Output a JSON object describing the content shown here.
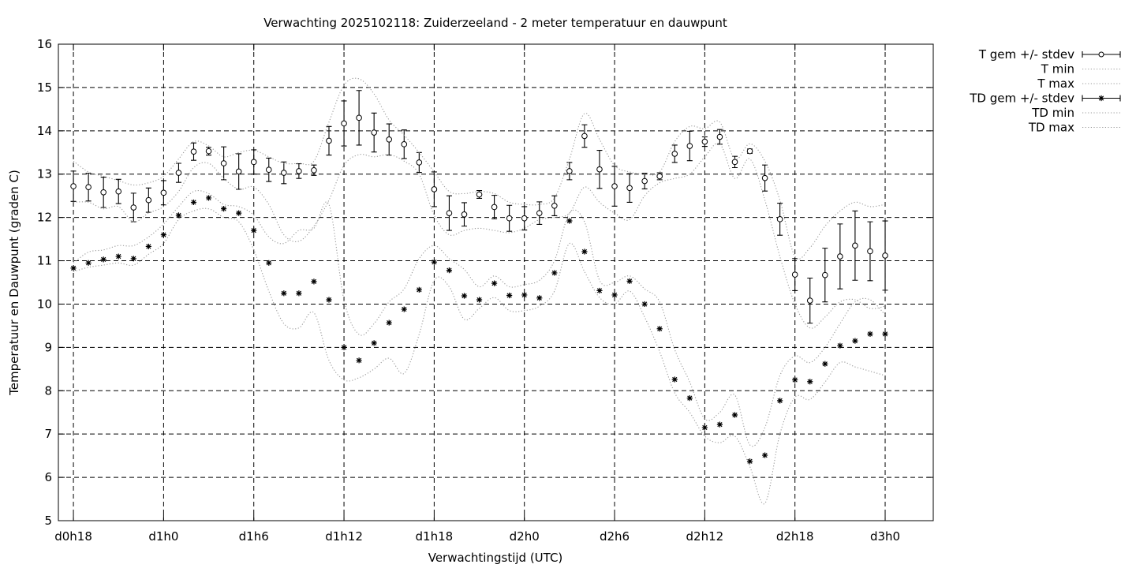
{
  "chart_data": {
    "type": "line",
    "title": "Verwachting 2025102118: Zuiderzeeland - 2 meter temperatuur en dauwpunt",
    "xlabel": "Verwachtingstijd (UTC)",
    "ylabel": "Temperatuur en Dauwpunt (graden C)",
    "ylim": [
      5,
      16
    ],
    "yticks": [
      5,
      6,
      7,
      8,
      9,
      10,
      11,
      12,
      13,
      14,
      15,
      16
    ],
    "xlim": [
      -1,
      57.2
    ],
    "xticks": [
      {
        "x": 0,
        "label": "d0h18"
      },
      {
        "x": 6,
        "label": "d1h0"
      },
      {
        "x": 12,
        "label": "d1h6"
      },
      {
        "x": 18,
        "label": "d1h12"
      },
      {
        "x": 24,
        "label": "d1h18"
      },
      {
        "x": 30,
        "label": "d2h0"
      },
      {
        "x": 36,
        "label": "d2h6"
      },
      {
        "x": 42,
        "label": "d2h12"
      },
      {
        "x": 48,
        "label": "d2h18"
      },
      {
        "x": 54,
        "label": "d3h0"
      }
    ],
    "grid": true,
    "legend_position": "outside-top-right",
    "x": [
      0,
      1,
      2,
      3,
      4,
      5,
      6,
      7,
      8,
      9,
      10,
      11,
      12,
      13,
      14,
      15,
      16,
      17,
      18,
      19,
      20,
      21,
      22,
      23,
      24,
      25,
      26,
      27,
      28,
      29,
      30,
      31,
      32,
      33,
      34,
      35,
      36,
      37,
      38,
      39,
      40,
      41,
      42,
      43,
      44,
      45,
      46,
      47,
      48,
      49,
      50,
      51,
      52,
      53,
      54
    ],
    "series": [
      {
        "name": "T gem +/- stdev",
        "marker": "circle",
        "errorbars": true,
        "values": [
          12.72,
          12.7,
          12.58,
          12.6,
          12.23,
          12.4,
          12.57,
          13.03,
          13.52,
          13.53,
          13.25,
          13.06,
          13.28,
          13.1,
          13.03,
          13.07,
          13.09,
          13.77,
          14.17,
          14.3,
          13.96,
          13.8,
          13.69,
          13.27,
          12.65,
          12.1,
          12.07,
          12.53,
          12.24,
          11.98,
          11.98,
          12.1,
          12.27,
          13.07,
          13.88,
          13.11,
          12.72,
          12.68,
          12.84,
          12.95,
          13.47,
          13.65,
          13.75,
          13.86,
          13.28,
          13.53,
          12.91,
          11.96,
          10.68,
          10.08,
          10.67,
          11.1,
          11.35,
          11.22,
          11.12
        ],
        "stdev": [
          0.35,
          0.32,
          0.35,
          0.28,
          0.33,
          0.28,
          0.28,
          0.22,
          0.2,
          0.09,
          0.38,
          0.41,
          0.28,
          0.27,
          0.25,
          0.17,
          0.12,
          0.33,
          0.52,
          0.63,
          0.45,
          0.36,
          0.33,
          0.23,
          0.4,
          0.4,
          0.27,
          0.09,
          0.27,
          0.3,
          0.27,
          0.26,
          0.23,
          0.2,
          0.26,
          0.44,
          0.46,
          0.33,
          0.18,
          0.08,
          0.2,
          0.34,
          0.11,
          0.17,
          0.13,
          0.05,
          0.3,
          0.37,
          0.37,
          0.52,
          0.62,
          0.75,
          0.8,
          0.68,
          0.8
        ]
      },
      {
        "name": "T min",
        "line": "dotted",
        "values": [
          12.35,
          12.35,
          12.2,
          12.25,
          11.9,
          12.1,
          12.25,
          12.6,
          13.15,
          13.25,
          12.9,
          12.65,
          12.7,
          12.3,
          11.6,
          11.45,
          11.8,
          12.4,
          13.2,
          13.45,
          13.4,
          13.45,
          13.3,
          13.0,
          12.05,
          11.6,
          11.7,
          11.75,
          11.7,
          11.65,
          11.75,
          11.95,
          12.0,
          12.1,
          12.7,
          12.35,
          12.1,
          11.95,
          12.5,
          12.8,
          12.9,
          13.0,
          13.4,
          13.7,
          12.9,
          13.35,
          12.4,
          11.1,
          10.0,
          9.45,
          9.7,
          10.05,
          10.1,
          9.9,
          9.95
        ]
      },
      {
        "name": "T max",
        "line": "dotted",
        "values": [
          13.3,
          13.05,
          12.95,
          12.85,
          12.75,
          12.8,
          12.95,
          13.35,
          13.75,
          13.65,
          13.4,
          13.5,
          13.55,
          13.4,
          13.25,
          13.25,
          13.3,
          14.2,
          15.05,
          15.2,
          14.85,
          14.25,
          13.9,
          13.5,
          13.05,
          12.6,
          12.55,
          12.6,
          12.55,
          12.35,
          12.3,
          12.3,
          12.45,
          13.35,
          14.4,
          13.8,
          13.2,
          13.05,
          13.0,
          13.05,
          13.75,
          14.1,
          14.05,
          14.2,
          13.35,
          13.7,
          13.3,
          12.4,
          11.1,
          11.3,
          11.8,
          12.15,
          12.35,
          12.25,
          12.3
        ]
      },
      {
        "name": "TD gem +/- stdev",
        "marker": "star",
        "errorbars": true,
        "values": [
          10.83,
          10.95,
          11.03,
          11.1,
          11.05,
          11.33,
          11.6,
          12.05,
          12.35,
          12.45,
          12.2,
          12.1,
          11.7,
          10.95,
          10.25,
          10.25,
          10.52,
          10.1,
          9.0,
          8.7,
          9.1,
          9.57,
          9.88,
          10.33,
          10.97,
          10.78,
          10.19,
          10.1,
          10.48,
          10.2,
          10.21,
          10.14,
          10.72,
          11.92,
          11.21,
          10.31,
          10.21,
          10.53,
          10.0,
          9.43,
          8.26,
          7.83,
          7.15,
          7.22,
          7.44,
          6.37,
          6.51,
          7.77,
          8.25,
          8.21,
          8.62,
          9.04,
          9.15,
          9.31,
          9.31
        ]
      },
      {
        "name": "TD min",
        "line": "dotted",
        "values": [
          10.75,
          10.85,
          10.9,
          10.95,
          10.9,
          11.15,
          11.4,
          11.95,
          12.15,
          12.2,
          12.0,
          11.9,
          11.25,
          10.3,
          9.55,
          9.45,
          9.8,
          8.7,
          8.25,
          8.3,
          8.5,
          8.75,
          8.4,
          9.3,
          10.55,
          10.4,
          9.65,
          9.9,
          10.15,
          9.85,
          9.85,
          9.95,
          10.3,
          11.4,
          10.75,
          10.15,
          10.0,
          10.3,
          9.7,
          8.9,
          7.95,
          7.5,
          6.95,
          6.8,
          6.95,
          6.25,
          5.4,
          7.0,
          7.85,
          7.8,
          8.2,
          8.65,
          8.55,
          8.45,
          8.35
        ]
      },
      {
        "name": "TD max",
        "line": "dotted",
        "values": [
          10.95,
          11.2,
          11.25,
          11.35,
          11.35,
          11.55,
          11.85,
          12.25,
          12.6,
          12.55,
          12.3,
          12.25,
          12.05,
          11.55,
          11.4,
          11.7,
          11.75,
          12.3,
          10.1,
          9.3,
          9.55,
          10.05,
          10.35,
          11.05,
          11.35,
          11.05,
          10.8,
          10.4,
          10.65,
          10.4,
          10.45,
          10.55,
          11.0,
          12.1,
          11.9,
          10.55,
          10.5,
          10.65,
          10.35,
          10.05,
          8.95,
          8.2,
          7.35,
          7.5,
          7.9,
          6.75,
          7.15,
          8.35,
          8.8,
          8.65,
          9.0,
          9.55,
          10.05,
          10.1,
          9.75
        ]
      }
    ]
  }
}
